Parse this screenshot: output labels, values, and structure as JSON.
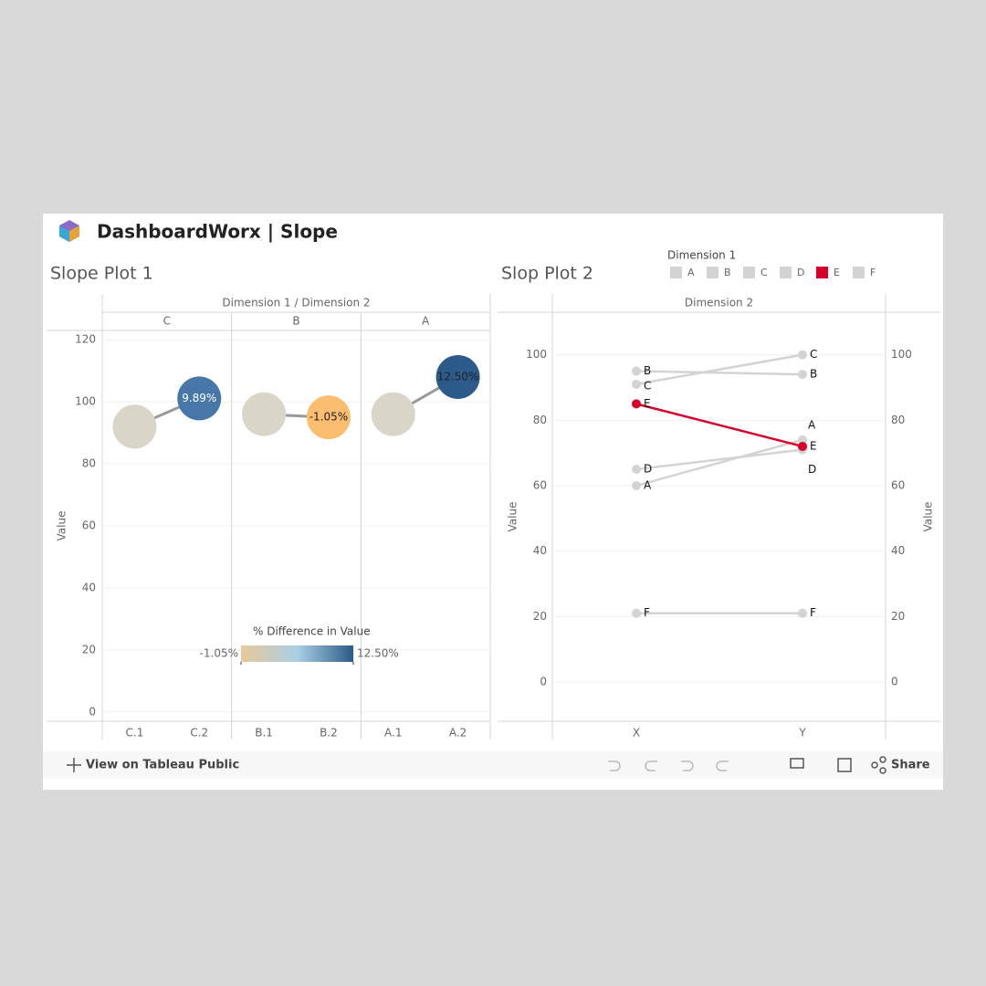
{
  "header": {
    "title": "DashboardWorx | Slope"
  },
  "toolbar": {
    "view_link": "View on Tableau Public",
    "share": "Share"
  },
  "chart_data": [
    {
      "type": "slope-bubble",
      "title": "Slope Plot 1",
      "header": "Dimension 1 / Dimension 2",
      "y_label": "Value",
      "groups": [
        "C",
        "B",
        "A"
      ],
      "categories": [
        "C.1",
        "C.2",
        "B.1",
        "B.2",
        "A.1",
        "A.2"
      ],
      "values": [
        92,
        101.1,
        96,
        95,
        96,
        108
      ],
      "pct_difference": [
        null,
        9.89,
        null,
        -1.05,
        null,
        12.5
      ],
      "value_labels": [
        null,
        "9.89%",
        null,
        "-1.05%",
        null,
        "12.50%"
      ],
      "colors": [
        "#d9d5c9",
        "#4777a8",
        "#d9d5c9",
        "#fbbd70",
        "#d9d5c9",
        "#2c5a8a"
      ],
      "ylim": [
        -3,
        123
      ],
      "yticks": [
        0,
        20,
        40,
        60,
        80,
        100,
        120
      ],
      "grid": true,
      "color_legend": {
        "title": "% Difference in Value",
        "range": [
          {
            "value": -1.05,
            "label": "-1.05%"
          },
          {
            "value": 12.5,
            "label": "12.50%"
          }
        ],
        "stops": [
          "#e9c89a",
          "#a9cfe3",
          "#2c5a8a"
        ]
      }
    },
    {
      "type": "slope-line",
      "title": "Slop Plot 2",
      "header": "Dimension 2",
      "y_label": "Value",
      "legend_title": "Dimension 1",
      "legend": "top-right",
      "categories": [
        "X",
        "Y"
      ],
      "series": [
        {
          "name": "A",
          "color": "#d3d3d3",
          "values": [
            60,
            74
          ]
        },
        {
          "name": "B",
          "color": "#d3d3d3",
          "values": [
            95,
            94
          ]
        },
        {
          "name": "C",
          "color": "#d3d3d3",
          "values": [
            91,
            100
          ]
        },
        {
          "name": "D",
          "color": "#d3d3d3",
          "values": [
            65,
            71
          ]
        },
        {
          "name": "E",
          "color": "#d6002b",
          "values": [
            85,
            72
          ]
        },
        {
          "name": "F",
          "color": "#d3d3d3",
          "values": [
            21,
            21
          ]
        }
      ],
      "ylim": [
        -12,
        113
      ],
      "yticks": [
        0,
        20,
        40,
        60,
        80,
        100
      ],
      "y2lim": [
        -12,
        113
      ],
      "y2ticks": [
        0,
        20,
        40,
        60,
        80,
        100
      ],
      "grid": true
    }
  ]
}
